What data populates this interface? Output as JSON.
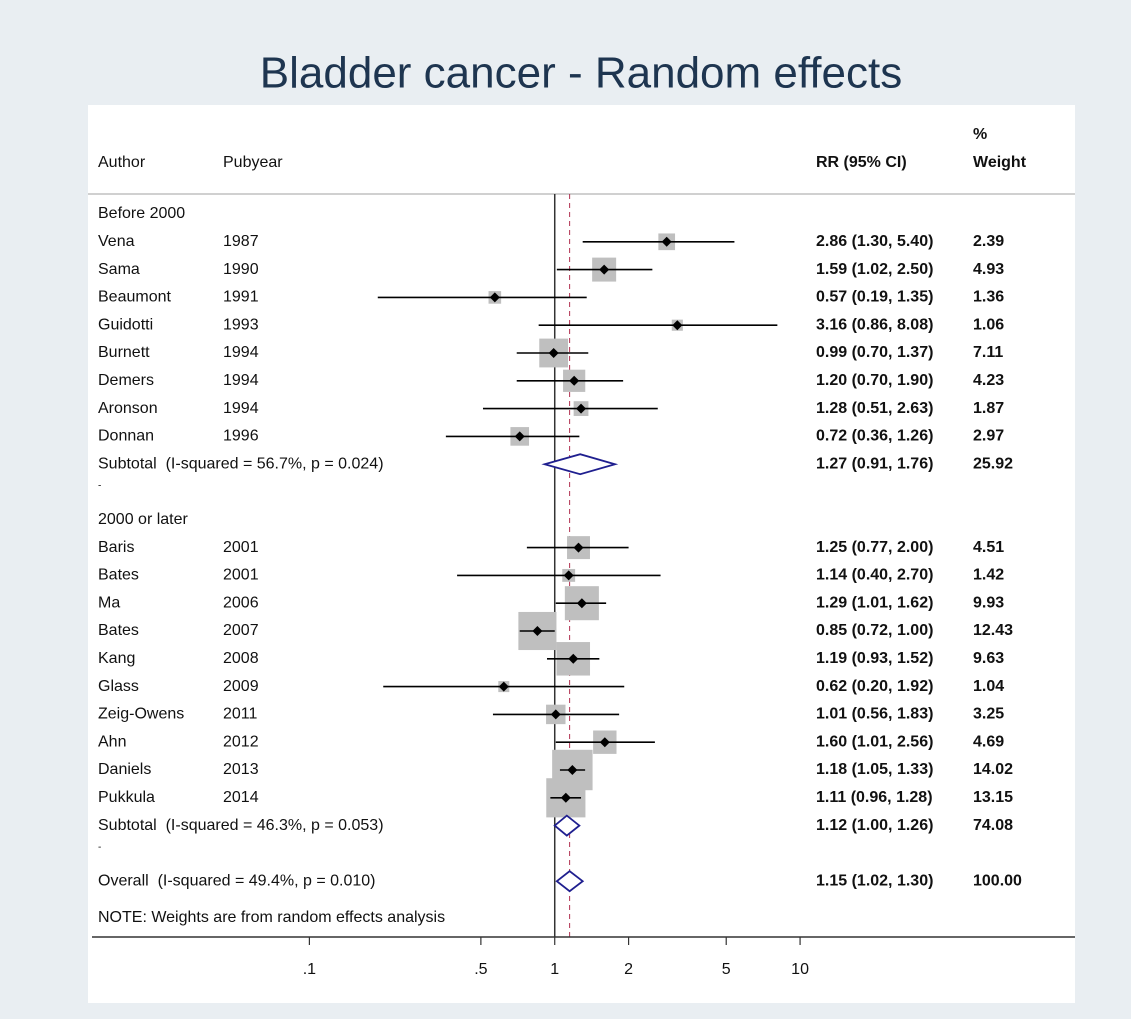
{
  "chart_data": {
    "type": "forest",
    "title": "Bladder cancer - Random effects",
    "headers": {
      "author": "Author",
      "pubyear": "Pubyear",
      "rr": "RR (95% CI)",
      "weight": [
        "%",
        "Weight"
      ]
    },
    "log": true,
    "xlim": [
      0.013,
      132
    ],
    "xticks": [
      {
        "value": 0.1,
        "label": ".1"
      },
      {
        "value": 0.5,
        "label": ".5"
      },
      1,
      2,
      5,
      10
    ],
    "null_value": 1,
    "box_color": "#bfbfbf",
    "diamond_color": "#1f1f8f",
    "ref_line_color": "#b03050",
    "groups": [
      {
        "label": "Before 2000",
        "studies": [
          {
            "author": "Vena",
            "year": 1987,
            "rr": 2.86,
            "lo": 1.3,
            "hi": 5.4,
            "label": "2.86 (1.30, 5.40)",
            "weight": 2.39
          },
          {
            "author": "Sama",
            "year": 1990,
            "rr": 1.59,
            "lo": 1.02,
            "hi": 2.5,
            "label": "1.59 (1.02, 2.50)",
            "weight": 4.93
          },
          {
            "author": "Beaumont",
            "year": 1991,
            "rr": 0.57,
            "lo": 0.19,
            "hi": 1.35,
            "label": "0.57 (0.19, 1.35)",
            "weight": 1.36
          },
          {
            "author": "Guidotti",
            "year": 1993,
            "rr": 3.16,
            "lo": 0.86,
            "hi": 8.08,
            "label": "3.16 (0.86, 8.08)",
            "weight": 1.06
          },
          {
            "author": "Burnett",
            "year": 1994,
            "rr": 0.99,
            "lo": 0.7,
            "hi": 1.37,
            "label": "0.99 (0.70, 1.37)",
            "weight": 7.11
          },
          {
            "author": "Demers",
            "year": 1994,
            "rr": 1.2,
            "lo": 0.7,
            "hi": 1.9,
            "label": "1.20 (0.70, 1.90)",
            "weight": 4.23
          },
          {
            "author": "Aronson",
            "year": 1994,
            "rr": 1.28,
            "lo": 0.51,
            "hi": 2.63,
            "label": "1.28 (0.51, 2.63)",
            "weight": 1.87
          },
          {
            "author": "Donnan",
            "year": 1996,
            "rr": 0.72,
            "lo": 0.36,
            "hi": 1.26,
            "label": "0.72 (0.36, 1.26)",
            "weight": 2.97
          }
        ],
        "subtotal": {
          "text": "Subtotal  (I-squared = 56.7%, p = 0.024)",
          "rr": 1.27,
          "lo": 0.91,
          "hi": 1.76,
          "label": "1.27 (0.91, 1.76)",
          "weight": 25.92
        },
        "spacer": "-"
      },
      {
        "label": "2000 or later",
        "studies": [
          {
            "author": "Baris",
            "year": 2001,
            "rr": 1.25,
            "lo": 0.77,
            "hi": 2.0,
            "label": "1.25 (0.77, 2.00)",
            "weight": 4.51
          },
          {
            "author": "Bates",
            "year": 2001,
            "rr": 1.14,
            "lo": 0.4,
            "hi": 2.7,
            "label": "1.14 (0.40, 2.70)",
            "weight": 1.42
          },
          {
            "author": "Ma",
            "year": 2006,
            "rr": 1.29,
            "lo": 1.01,
            "hi": 1.62,
            "label": "1.29 (1.01, 1.62)",
            "weight": 9.93
          },
          {
            "author": "Bates",
            "year": 2007,
            "rr": 0.85,
            "lo": 0.72,
            "hi": 1.0,
            "label": "0.85 (0.72, 1.00)",
            "weight": 12.43
          },
          {
            "author": "Kang",
            "year": 2008,
            "rr": 1.19,
            "lo": 0.93,
            "hi": 1.52,
            "label": "1.19 (0.93, 1.52)",
            "weight": 9.63
          },
          {
            "author": "Glass",
            "year": 2009,
            "rr": 0.62,
            "lo": 0.2,
            "hi": 1.92,
            "label": "0.62 (0.20, 1.92)",
            "weight": 1.04
          },
          {
            "author": "Zeig-Owens",
            "year": 2011,
            "rr": 1.01,
            "lo": 0.56,
            "hi": 1.83,
            "label": "1.01 (0.56, 1.83)",
            "weight": 3.25
          },
          {
            "author": "Ahn",
            "year": 2012,
            "rr": 1.6,
            "lo": 1.01,
            "hi": 2.56,
            "label": "1.60 (1.01, 2.56)",
            "weight": 4.69
          },
          {
            "author": "Daniels",
            "year": 2013,
            "rr": 1.18,
            "lo": 1.05,
            "hi": 1.33,
            "label": "1.18 (1.05, 1.33)",
            "weight": 14.02
          },
          {
            "author": "Pukkula",
            "year": 2014,
            "rr": 1.11,
            "lo": 0.96,
            "hi": 1.28,
            "label": "1.11 (0.96, 1.28)",
            "weight": 13.15
          }
        ],
        "subtotal": {
          "text": "Subtotal  (I-squared = 46.3%, p = 0.053)",
          "rr": 1.12,
          "lo": 1.0,
          "hi": 1.26,
          "label": "1.12 (1.00, 1.26)",
          "weight": 74.08
        },
        "spacer": "-"
      }
    ],
    "overall": {
      "text": "Overall  (I-squared = 49.4%, p = 0.010)",
      "rr": 1.15,
      "lo": 1.02,
      "hi": 1.3,
      "label": "1.15 (1.02, 1.30)",
      "weight": 100,
      "weight_label": "100.00"
    },
    "note": "NOTE: Weights are from random effects analysis"
  }
}
